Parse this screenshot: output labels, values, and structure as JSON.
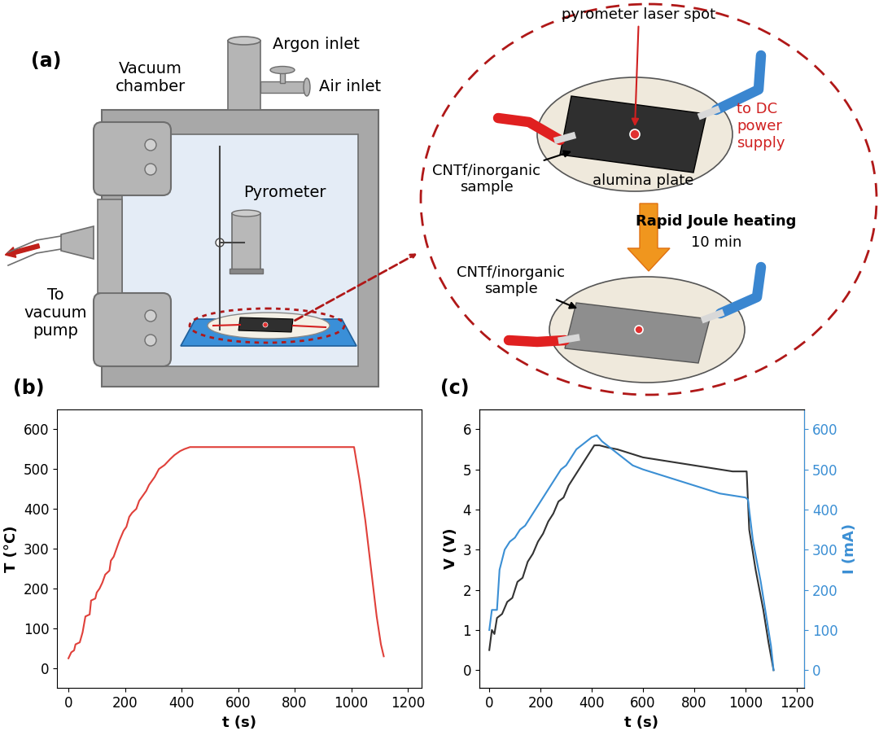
{
  "diagram": {
    "panel_label": "(a)",
    "chamber_label": "Vacuum\nchamber",
    "argon_inlet": "Argon inlet",
    "air_inlet": "Air inlet",
    "pyrometer": "Pyrometer",
    "pump": "To\nvacuum\npump",
    "inset": {
      "laser_spot": "pyrometer laser spot",
      "power_supply": "to DC\npower\nsupply",
      "sample_before": "CNTf/inorganic\nsample",
      "plate": "alumina plate",
      "process": "Rapid Joule heating",
      "duration": "10 min",
      "sample_after": "CNTf/inorganic\nsample"
    }
  },
  "chart_data": [
    {
      "type": "line",
      "title": "(b)",
      "xlabel": "t (s)",
      "ylabel": "T (°C)",
      "xlim": [
        -40,
        1250
      ],
      "xticks": [
        0,
        200,
        400,
        600,
        800,
        1000,
        1200
      ],
      "ylim": [
        -50,
        650
      ],
      "yticks": [
        0,
        100,
        200,
        300,
        400,
        500,
        600
      ],
      "series": [
        {
          "color": "#e0403a",
          "x": [
            0,
            10,
            20,
            25,
            40,
            50,
            60,
            75,
            80,
            95,
            100,
            110,
            120,
            130,
            145,
            150,
            160,
            170,
            180,
            195,
            205,
            215,
            225,
            240,
            250,
            260,
            275,
            285,
            295,
            305,
            320,
            340,
            360,
            375,
            395,
            410,
            430,
            500,
            600,
            700,
            800,
            900,
            1000,
            1010,
            1030,
            1050,
            1070,
            1090,
            1105,
            1115
          ],
          "values": [
            25,
            40,
            45,
            60,
            65,
            90,
            130,
            135,
            170,
            175,
            190,
            200,
            215,
            235,
            245,
            270,
            280,
            300,
            320,
            345,
            355,
            380,
            390,
            400,
            420,
            430,
            445,
            460,
            470,
            480,
            500,
            510,
            525,
            535,
            545,
            550,
            555,
            555,
            555,
            555,
            555,
            555,
            555,
            555,
            470,
            370,
            250,
            130,
            60,
            30
          ]
        }
      ]
    },
    {
      "type": "line",
      "title": "(c)",
      "xlabel": "t (s)",
      "ylabel": "V (V)",
      "y2label": "I (mA)",
      "xlim": [
        -40,
        1230
      ],
      "xticks": [
        0,
        200,
        400,
        600,
        800,
        1000,
        1200
      ],
      "ylim": [
        -0.45,
        6.5
      ],
      "yticks": [
        0,
        1,
        2,
        3,
        4,
        5,
        6
      ],
      "y2lim": [
        -45,
        650
      ],
      "y2ticks": [
        0,
        100,
        200,
        300,
        400,
        500,
        600
      ],
      "series": [
        {
          "color": "#333333",
          "x": [
            0,
            10,
            20,
            30,
            50,
            70,
            90,
            110,
            130,
            150,
            170,
            190,
            210,
            230,
            250,
            270,
            290,
            310,
            330,
            350,
            370,
            390,
            410,
            430,
            460,
            500,
            550,
            600,
            650,
            700,
            750,
            800,
            850,
            900,
            950,
            1005,
            1015,
            1040,
            1070,
            1090,
            1110
          ],
          "values": [
            0.5,
            1.0,
            0.9,
            1.3,
            1.4,
            1.7,
            1.8,
            2.2,
            2.3,
            2.7,
            2.9,
            3.2,
            3.4,
            3.7,
            3.9,
            4.2,
            4.3,
            4.6,
            4.8,
            5.0,
            5.2,
            5.4,
            5.6,
            5.6,
            5.55,
            5.5,
            5.4,
            5.3,
            5.25,
            5.2,
            5.15,
            5.1,
            5.05,
            5.0,
            4.95,
            4.95,
            3.5,
            2.5,
            1.5,
            0.7,
            0.0
          ]
        },
        {
          "color": "#3b8fd4",
          "axis": "y2",
          "x": [
            0,
            10,
            30,
            40,
            60,
            80,
            100,
            120,
            140,
            160,
            180,
            200,
            220,
            240,
            260,
            280,
            300,
            320,
            340,
            360,
            380,
            400,
            420,
            440,
            480,
            520,
            560,
            600,
            650,
            700,
            750,
            800,
            850,
            900,
            950,
            1000,
            1010,
            1030,
            1060,
            1080,
            1100,
            1110
          ],
          "values": [
            100,
            150,
            150,
            250,
            300,
            320,
            330,
            350,
            360,
            380,
            400,
            420,
            440,
            460,
            480,
            500,
            510,
            530,
            550,
            560,
            570,
            580,
            585,
            570,
            550,
            530,
            510,
            500,
            490,
            480,
            470,
            460,
            450,
            440,
            435,
            430,
            425,
            320,
            220,
            140,
            60,
            0
          ]
        }
      ]
    }
  ]
}
